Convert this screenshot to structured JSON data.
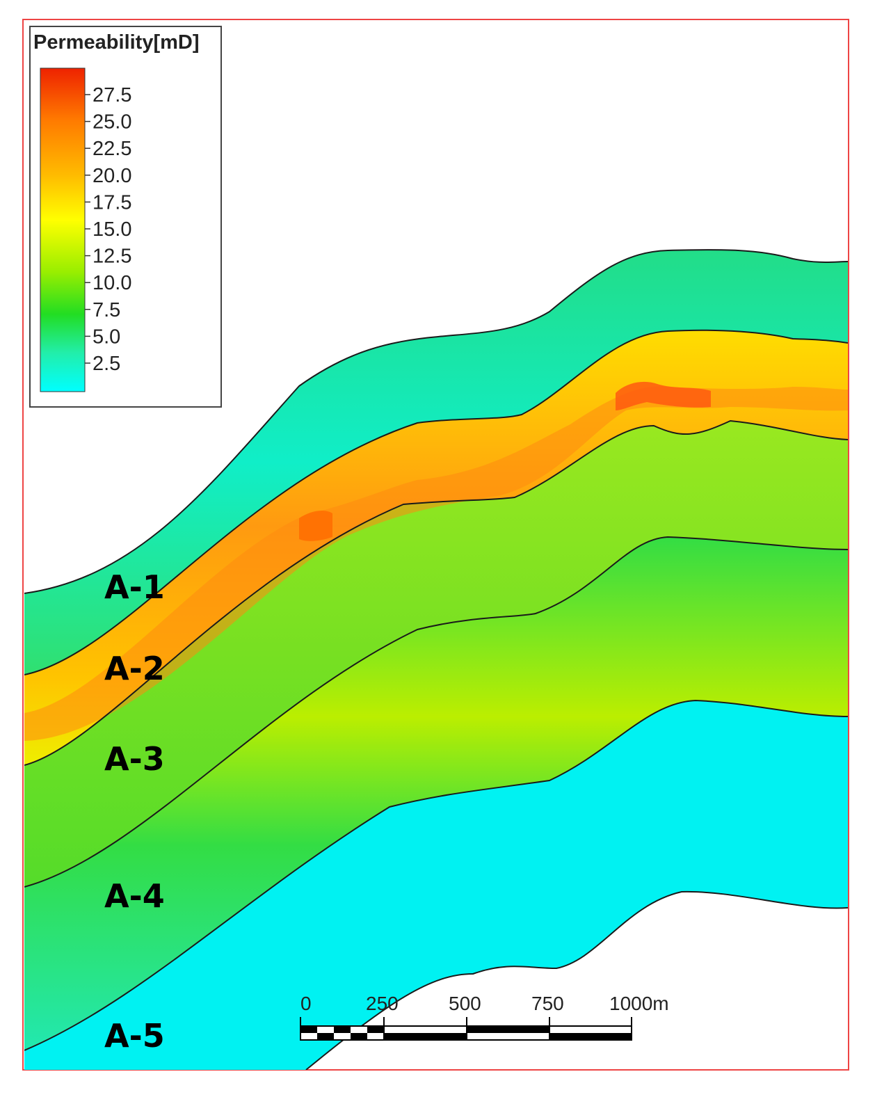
{
  "legend": {
    "title": "Permeability[mD]",
    "ticks": [
      "27.5",
      "25.0",
      "22.5",
      "20.0",
      "17.5",
      "15.0",
      "12.5",
      "10.0",
      "7.5",
      "5.0",
      "2.5"
    ],
    "colors": {
      "max": "#ff3300",
      "high": "#ff9900",
      "mid": "#ffff00",
      "low": "#33dd22",
      "min": "#00ffff"
    }
  },
  "layers": [
    {
      "label": "A-1",
      "color": "#22dd88"
    },
    {
      "label": "A-2",
      "color": "#ffaa00"
    },
    {
      "label": "A-3",
      "color": "#88e822"
    },
    {
      "label": "A-4",
      "color": "#44e044"
    },
    {
      "label": "A-5",
      "color": "#00f0f0"
    }
  ],
  "scale_bar": {
    "labels": [
      "0",
      "250",
      "500",
      "750",
      "1000m"
    ]
  },
  "frame_color": "#ee4444"
}
